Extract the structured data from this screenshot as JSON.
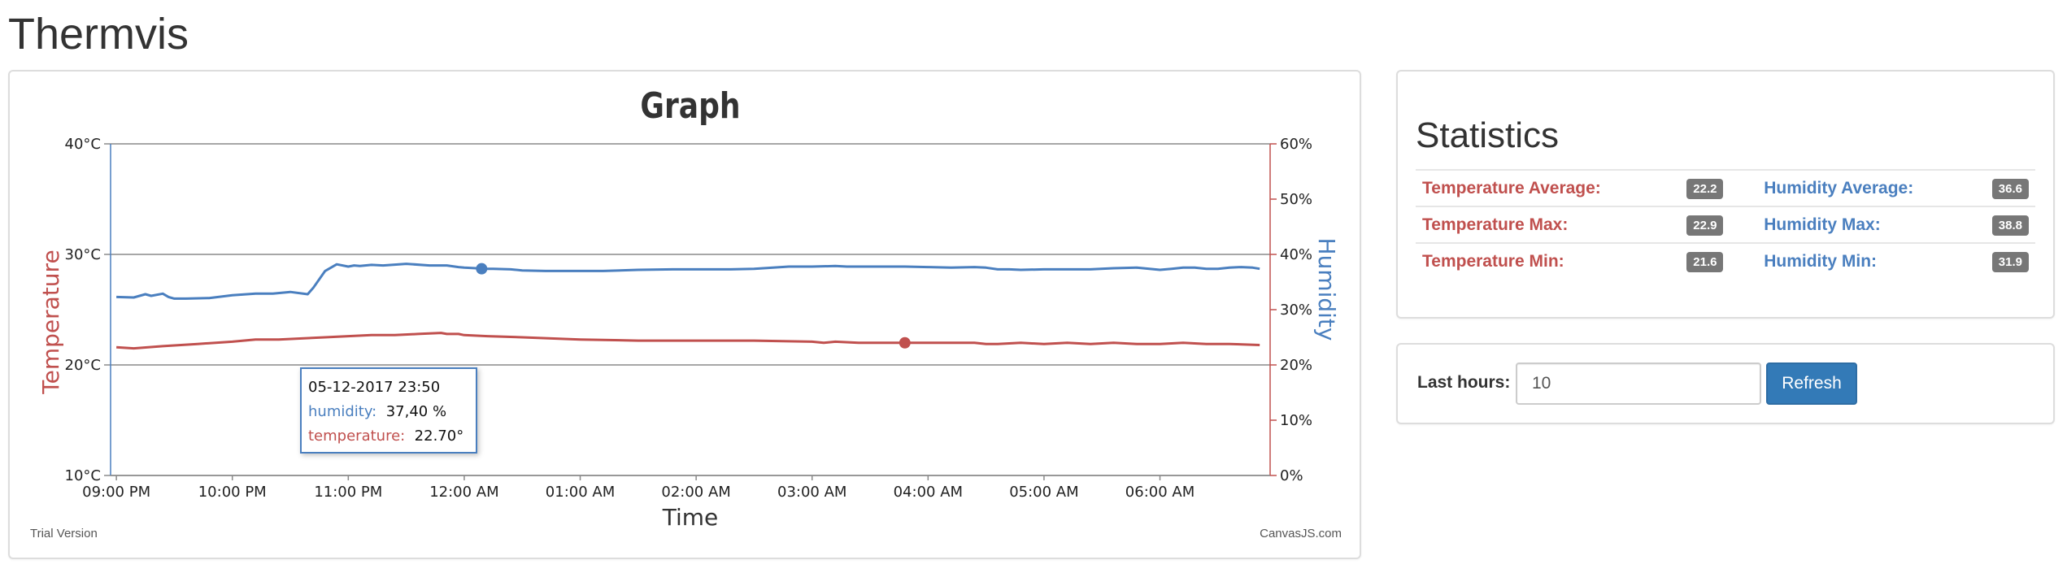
{
  "app": {
    "title": "Thermvis"
  },
  "graph": {
    "trial_text": "Trial Version",
    "credit_text": "CanvasJS.com",
    "tooltip": {
      "datetime": "05-12-2017 23:50",
      "humidity_label": "humidity:",
      "humidity_value": "37,40 %",
      "temperature_label": "temperature:",
      "temperature_value": "22.70°"
    }
  },
  "statistics": {
    "title": "Statistics",
    "rows": [
      {
        "temp_label": "Temperature Average:",
        "temp_value": "22.2",
        "hum_label": "Humidity Average:",
        "hum_value": "36.6"
      },
      {
        "temp_label": "Temperature Max:",
        "temp_value": "22.9",
        "hum_label": "Humidity Max:",
        "hum_value": "38.8"
      },
      {
        "temp_label": "Temperature Min:",
        "temp_value": "21.6",
        "hum_label": "Humidity Min:",
        "hum_value": "31.9"
      }
    ]
  },
  "controls": {
    "hours_label": "Last hours:",
    "hours_value": "10",
    "refresh_label": "Refresh"
  },
  "colors": {
    "temperature": "#c0504e",
    "humidity": "#4a7fbf",
    "button": "#337ab7",
    "badge": "#777777"
  },
  "chart_data": {
    "type": "line",
    "title": "Graph",
    "xlabel": "Time",
    "ylabel": "Temperature",
    "y2label": "Humidity",
    "ylim": [
      10,
      40
    ],
    "y2lim": [
      0,
      60
    ],
    "yticks": [
      "10°C",
      "20°C",
      "30°C",
      "40°C"
    ],
    "y2ticks": [
      "0%",
      "10%",
      "20%",
      "30%",
      "40%",
      "50%",
      "60%"
    ],
    "xlim": [
      -0.05,
      9.95
    ],
    "xtick_labels": [
      "09:00 PM",
      "10:00 PM",
      "11:00 PM",
      "12:00 AM",
      "01:00 AM",
      "02:00 AM",
      "03:00 AM",
      "04:00 AM",
      "05:00 AM",
      "06:00 AM"
    ],
    "highlight_index": 28,
    "series": [
      {
        "name": "humidity",
        "axis": "right",
        "color": "#4a7fbf",
        "x": [
          0.0,
          0.15,
          0.25,
          0.3,
          0.4,
          0.45,
          0.5,
          0.6,
          0.8,
          1.0,
          1.2,
          1.35,
          1.5,
          1.65,
          1.7,
          1.8,
          1.9,
          2.0,
          2.05,
          2.1,
          2.2,
          2.3,
          2.5,
          2.7,
          2.85,
          2.95,
          3.0,
          3.1,
          3.15,
          3.25,
          3.4,
          3.5,
          3.7,
          4.0,
          4.2,
          4.5,
          4.8,
          5.0,
          5.1,
          5.3,
          5.5,
          5.8,
          6.0,
          6.2,
          6.3,
          6.4,
          6.6,
          6.8,
          7.0,
          7.2,
          7.4,
          7.5,
          7.6,
          7.7,
          7.8,
          8.0,
          8.2,
          8.4,
          8.6,
          8.8,
          9.0,
          9.1,
          9.2,
          9.3,
          9.4,
          9.5,
          9.6,
          9.7,
          9.8,
          9.86
        ],
        "y": [
          32.3,
          32.2,
          32.8,
          32.5,
          32.9,
          32.3,
          32.0,
          32.0,
          32.1,
          32.6,
          32.9,
          32.9,
          33.2,
          32.8,
          34.0,
          37.0,
          38.2,
          37.8,
          38.0,
          37.9,
          38.1,
          38.0,
          38.3,
          38.0,
          38.0,
          37.7,
          37.6,
          37.5,
          37.4,
          37.4,
          37.3,
          37.1,
          37.0,
          37.0,
          37.0,
          37.2,
          37.3,
          37.3,
          37.3,
          37.3,
          37.4,
          37.8,
          37.8,
          37.9,
          37.8,
          37.8,
          37.8,
          37.8,
          37.7,
          37.6,
          37.7,
          37.6,
          37.3,
          37.3,
          37.2,
          37.3,
          37.3,
          37.3,
          37.5,
          37.6,
          37.2,
          37.4,
          37.6,
          37.6,
          37.4,
          37.4,
          37.6,
          37.7,
          37.6,
          37.4
        ]
      },
      {
        "name": "temperature",
        "axis": "left",
        "color": "#c0504e",
        "x": [
          0.0,
          0.15,
          0.4,
          0.7,
          1.0,
          1.2,
          1.4,
          1.6,
          1.8,
          2.0,
          2.2,
          2.4,
          2.6,
          2.8,
          2.85,
          2.95,
          3.0,
          3.2,
          3.5,
          4.0,
          4.5,
          5.0,
          5.5,
          6.0,
          6.1,
          6.2,
          6.4,
          6.6,
          6.8,
          7.0,
          7.2,
          7.4,
          7.5,
          7.6,
          7.8,
          8.0,
          8.2,
          8.4,
          8.6,
          8.8,
          9.0,
          9.2,
          9.4,
          9.6,
          9.86
        ],
        "y": [
          21.6,
          21.5,
          21.7,
          21.9,
          22.1,
          22.3,
          22.3,
          22.4,
          22.5,
          22.6,
          22.7,
          22.7,
          22.8,
          22.9,
          22.8,
          22.8,
          22.7,
          22.6,
          22.5,
          22.3,
          22.2,
          22.2,
          22.2,
          22.1,
          22.0,
          22.1,
          22.0,
          22.0,
          22.0,
          22.0,
          22.0,
          22.0,
          21.9,
          21.9,
          22.0,
          21.9,
          22.0,
          21.9,
          22.0,
          21.9,
          21.9,
          22.0,
          21.9,
          21.9,
          21.8
        ]
      }
    ]
  }
}
